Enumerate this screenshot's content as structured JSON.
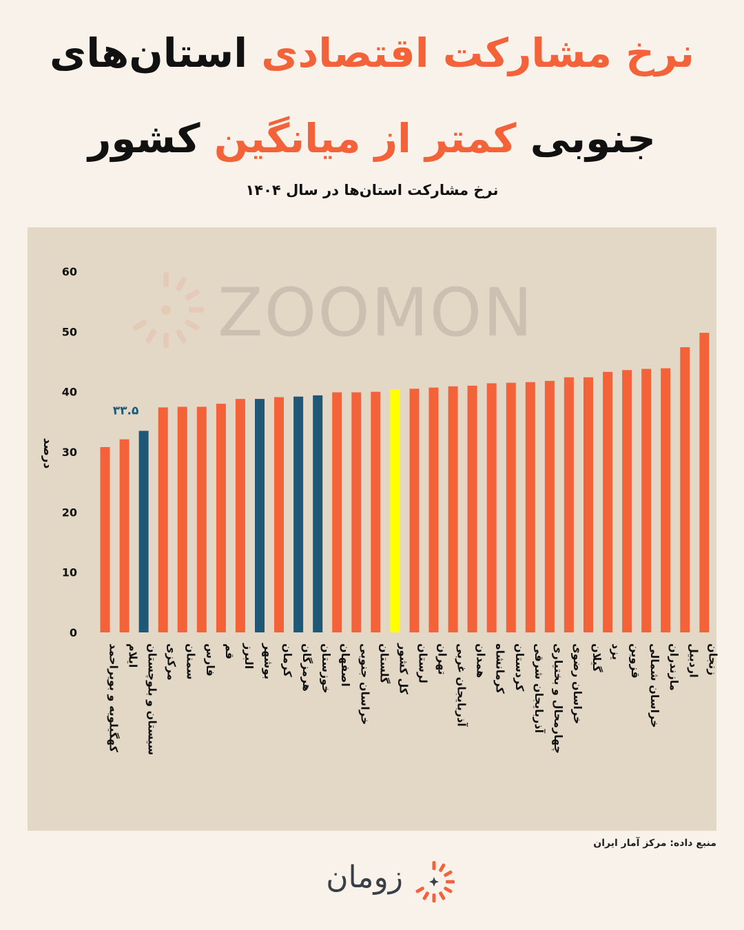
{
  "header": {
    "title_line1_highlight": "نرخ مشارکت اقتصادی",
    "title_line1_rest": "استان‌های",
    "title_line2_start": "جنوبی",
    "title_line2_highlight": "کمتر از میانگین",
    "title_line2_end": "کشور",
    "subtitle": "نرخ مشارکت استان‌ها در سال ۱۴۰۴"
  },
  "footer": {
    "source": "منبع داده: مرکز آمار ایران",
    "brand": "زومان"
  },
  "watermark": "ZOOMON",
  "colors": {
    "accent": "#f4623a",
    "bar_default": "#f4623a",
    "bar_south": "#1f5877",
    "bar_national": "#ffff00",
    "panel": "#e3d7c6",
    "page": "#f8f2ea"
  },
  "chart_data": {
    "type": "bar",
    "ylabel": "درصد",
    "ylim": [
      0,
      60
    ],
    "yticks": [
      "0",
      "10",
      "20",
      "30",
      "40",
      "50",
      "60"
    ],
    "grid": false,
    "legend": "none",
    "annotation": {
      "category": "سیستان و بلوچستان",
      "text": "۳۳.۵"
    },
    "categories": [
      "کهگیلویه و بویراحمد",
      "ایلام",
      "سیستان و بلوچستان",
      "مرکزی",
      "سمنان",
      "فارس",
      "قم",
      "البرز",
      "بوشهر",
      "کرمان",
      "هرمزگان",
      "خوزستان",
      "اصفهان",
      "خراسان جنوبی",
      "گلستان",
      "کل کشور",
      "لرستان",
      "تهران",
      "آذربایجان غربی",
      "همدان",
      "کرمانشاه",
      "کردستان",
      "آذربایجان شرقی",
      "چهارمحال و بختیاری",
      "خراسان رضوی",
      "گیلان",
      "یزد",
      "قزوین",
      "خراسان شمالی",
      "مازندران",
      "اردبیل",
      "زنجان"
    ],
    "values": [
      30.8,
      32.1,
      33.5,
      37.4,
      37.5,
      37.5,
      38.0,
      38.8,
      38.8,
      39.1,
      39.2,
      39.4,
      39.9,
      39.9,
      40.0,
      40.4,
      40.5,
      40.7,
      40.9,
      41.0,
      41.4,
      41.5,
      41.6,
      41.8,
      42.4,
      42.4,
      43.3,
      43.6,
      43.8,
      43.9,
      47.4,
      49.8
    ],
    "groups": [
      "default",
      "default",
      "south",
      "default",
      "default",
      "default",
      "default",
      "default",
      "south",
      "default",
      "south",
      "south",
      "default",
      "default",
      "default",
      "national",
      "default",
      "default",
      "default",
      "default",
      "default",
      "default",
      "default",
      "default",
      "default",
      "default",
      "default",
      "default",
      "default",
      "default",
      "default",
      "default"
    ]
  }
}
